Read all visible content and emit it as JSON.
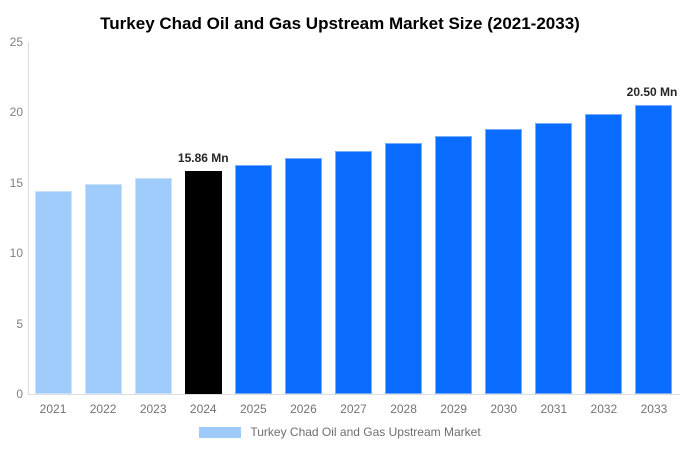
{
  "colors": {
    "background": "#FFFFFF",
    "title_text": "#000000",
    "axis_line": "#DDDDDD",
    "y_tick_text": "#808080",
    "x_label_text": "#737373",
    "annotation_text": "#262626",
    "legend_text": "#6E6E6E",
    "historical_bar": "#9FCBFA",
    "highlight_bar": "#000000",
    "forecast_bar": "#0A6CFF"
  },
  "chart_data": {
    "type": "bar",
    "title": "Turkey Chad Oil and Gas Upstream Market Size (2021-2033)",
    "categories": [
      "2021",
      "2022",
      "2023",
      "2024",
      "2025",
      "2026",
      "2027",
      "2028",
      "2029",
      "2030",
      "2031",
      "2032",
      "2033"
    ],
    "values": [
      14.45,
      14.9,
      15.32,
      15.86,
      16.25,
      16.74,
      17.27,
      17.8,
      18.3,
      18.79,
      19.23,
      19.9,
      20.5
    ],
    "unit": "Mn",
    "ylabel": "",
    "xlabel": "",
    "ylim": [
      0,
      25
    ],
    "y_ticks": [
      0,
      5,
      10,
      15,
      20,
      25
    ],
    "grid": false,
    "bar_roles": [
      "historical",
      "historical",
      "historical",
      "highlight",
      "forecast",
      "forecast",
      "forecast",
      "forecast",
      "forecast",
      "forecast",
      "forecast",
      "forecast",
      "forecast"
    ],
    "role_colors": {
      "historical": "#9FCBFA",
      "highlight": "#000000",
      "forecast": "#0A6CFF"
    },
    "annotations": [
      {
        "category": "2024",
        "text": "15.86 Mn"
      },
      {
        "category": "2033",
        "text": "20.50 Mn"
      }
    ],
    "legend": {
      "position": "bottom",
      "items": [
        {
          "label": "Turkey Chad Oil and Gas Upstream Market",
          "swatch_color": "#9FCBFA"
        }
      ]
    }
  }
}
